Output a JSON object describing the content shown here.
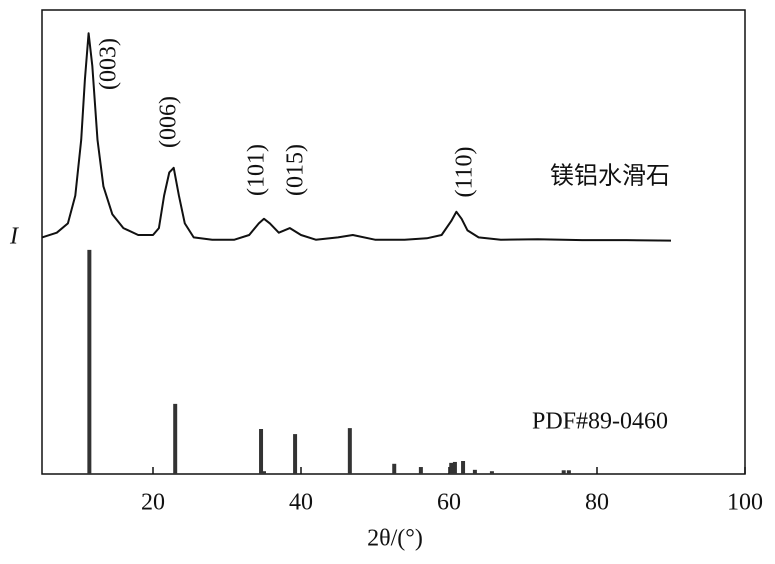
{
  "chart_data": {
    "type": "xrd",
    "xlabel": "2θ/(°)",
    "ylabel": "I",
    "xlim": [
      5,
      100
    ],
    "ylim": [
      0,
      100
    ],
    "xticks": [
      20,
      40,
      60,
      80,
      100
    ],
    "annotations": [
      "(003)",
      "(006)",
      "(101)",
      "(015)",
      "(110)"
    ],
    "series": [
      {
        "name": "镁铝水滑石",
        "type": "line",
        "color": "#111111",
        "x": [
          5,
          7,
          8.5,
          9.5,
          10.3,
          10.8,
          11.3,
          11.8,
          12.5,
          13.3,
          14.5,
          16,
          18,
          20,
          20.8,
          21.5,
          22.2,
          22.8,
          23.5,
          24.3,
          25.5,
          28,
          31,
          33,
          34.3,
          35,
          35.8,
          37,
          38.5,
          40,
          42,
          45,
          47,
          50,
          54,
          57,
          59,
          60.3,
          61,
          61.7,
          62.5,
          64,
          67,
          72,
          78,
          84,
          90
        ],
        "values": [
          51,
          52,
          54,
          60,
          72,
          85,
          95,
          88,
          72,
          62,
          56,
          53,
          51.5,
          51.5,
          53,
          60,
          65,
          66,
          60,
          54,
          51,
          50.5,
          50.5,
          51.5,
          54,
          55,
          54,
          52,
          53,
          51.5,
          50.5,
          51,
          51.5,
          50.5,
          50.5,
          50.8,
          51.5,
          54.5,
          56.5,
          55,
          52.5,
          51,
          50.5,
          50.6,
          50.4,
          50.4,
          50.3
        ]
      },
      {
        "name": "PDF#89-0460",
        "type": "stem",
        "color": "#333333",
        "x": [
          11.4,
          23.0,
          34.6,
          35.0,
          39.2,
          46.6,
          52.6,
          56.2,
          60.3,
          60.8,
          61.9,
          63.5,
          65.8,
          75.5,
          76.2
        ],
        "values": [
          48.3,
          15.1,
          9.7,
          0.6,
          8.6,
          9.9,
          2.2,
          1.5,
          2.4,
          2.6,
          2.8,
          0.9,
          0.6,
          0.8,
          0.8
        ]
      }
    ]
  }
}
